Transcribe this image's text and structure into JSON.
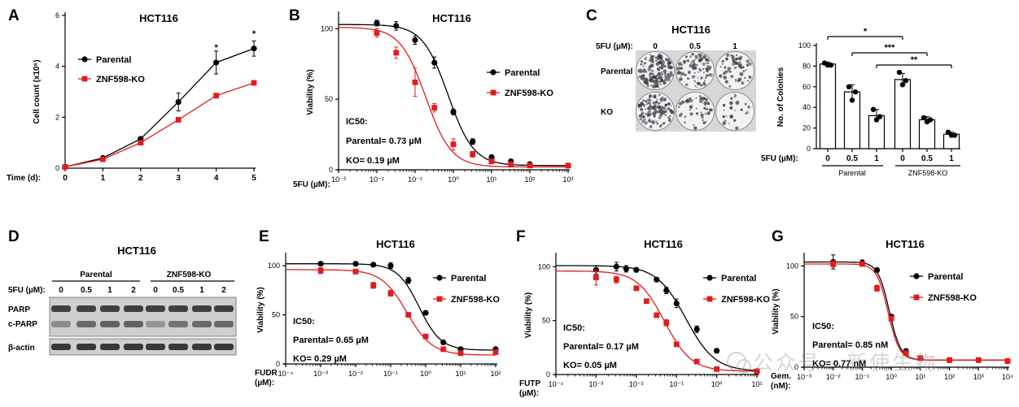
{
  "panel_letters": [
    "A",
    "B",
    "C",
    "D",
    "E",
    "F",
    "G"
  ],
  "colors": {
    "parental": "#000000",
    "ko": "#e41a1c",
    "bar_edge": "#000000"
  },
  "watermark": "公众号 · 新使生物",
  "chart_data": [
    {
      "id": "A",
      "type": "line",
      "title": "HCT116",
      "xlabel": "Time (d):",
      "ylabel": "Cell count (x10⁶)",
      "xlim": [
        0,
        5
      ],
      "ylim": [
        0,
        6
      ],
      "xticks": [
        0,
        1,
        2,
        3,
        4,
        5
      ],
      "yticks": [
        0,
        2,
        4,
        6
      ],
      "legend": "top-left",
      "annotations": [
        {
          "text": "*",
          "x": 4,
          "y": 4.75
        },
        {
          "text": "*",
          "x": 5,
          "y": 5.3
        }
      ],
      "series": [
        {
          "name": "Parental",
          "color": "#000000",
          "marker": "circle",
          "x": [
            0,
            1,
            2,
            3,
            4,
            5
          ],
          "y": [
            0.05,
            0.4,
            1.15,
            2.6,
            4.15,
            4.7
          ],
          "err": [
            0,
            0.05,
            0.08,
            0.35,
            0.45,
            0.3
          ]
        },
        {
          "name": "ZNF598-KO",
          "color": "#e41a1c",
          "marker": "square",
          "x": [
            0,
            1,
            2,
            3,
            4,
            5
          ],
          "y": [
            0.05,
            0.35,
            1.0,
            1.9,
            2.85,
            3.35
          ],
          "err": [
            0,
            0.03,
            0.05,
            0.05,
            0.05,
            0.05
          ]
        }
      ]
    },
    {
      "id": "B",
      "type": "scatter",
      "title": "HCT116",
      "xlabel": "5FU (µM):",
      "ylabel": "Viability (%)",
      "xscale": "log",
      "xlim": [
        0.001,
        1000
      ],
      "ylim": [
        0,
        110
      ],
      "xticks": [
        0.001,
        0.01,
        0.1,
        1,
        10,
        100,
        1000
      ],
      "xticklabels": [
        "10⁻³",
        "10⁻²",
        "10⁻¹",
        "10⁰",
        "10¹",
        "10²",
        "10³"
      ],
      "yticks": [
        0,
        50,
        100
      ],
      "legend": "right",
      "ic50_text": [
        "IC50:",
        "Parental= 0.73 µM",
        "KO= 0.19 µM"
      ],
      "series": [
        {
          "name": "Parental",
          "color": "#000000",
          "marker": "circle",
          "ic50": 0.73,
          "hill": 1.3,
          "top": 103,
          "bottom": 3,
          "x": [
            0.01,
            0.032,
            0.1,
            0.32,
            1,
            3.2,
            10,
            32,
            100,
            1000
          ],
          "y": [
            104,
            102,
            92,
            76,
            41,
            20,
            9,
            6,
            4,
            3
          ],
          "err": [
            2,
            3,
            3,
            4,
            2,
            2,
            1,
            1,
            1,
            1
          ]
        },
        {
          "name": "ZNF598-KO",
          "color": "#e41a1c",
          "marker": "square",
          "ic50": 0.19,
          "hill": 1.3,
          "top": 101,
          "bottom": 2,
          "x": [
            0.01,
            0.032,
            0.1,
            0.32,
            1,
            3.2,
            10,
            32,
            100,
            1000
          ],
          "y": [
            97,
            83,
            62,
            44,
            18,
            11,
            6,
            4,
            3,
            3
          ],
          "err": [
            3,
            4,
            10,
            3,
            4,
            2,
            1,
            1,
            1,
            1
          ]
        }
      ]
    },
    {
      "id": "C",
      "type": "bar",
      "title": "HCT116",
      "ylabel": "No. of Colonies",
      "ylim": [
        0,
        100
      ],
      "yticks": [
        0,
        20,
        40,
        60,
        80,
        100
      ],
      "xlabel": "5FU (µM):",
      "plate_row_labels": [
        "Parental",
        "KO"
      ],
      "plate_col_labels": [
        "0",
        "0.5",
        "1"
      ],
      "plate_header": "5FU (µM):",
      "categories": [
        "0",
        "0.5",
        "1",
        "0",
        "0.5",
        "1"
      ],
      "groups": [
        "Parental",
        "ZNF598-KO"
      ],
      "values": [
        82,
        55,
        32,
        67,
        28,
        14
      ],
      "errors": [
        2,
        7,
        6,
        6,
        3,
        2
      ],
      "dots": [
        [
          83,
          81,
          81
        ],
        [
          60,
          47,
          55
        ],
        [
          38,
          28,
          31
        ],
        [
          74,
          62,
          66
        ],
        [
          30,
          26,
          28
        ],
        [
          16,
          13,
          13
        ]
      ],
      "significance": [
        {
          "from": 0,
          "to": 3,
          "text": "*"
        },
        {
          "from": 1,
          "to": 4,
          "text": "***"
        },
        {
          "from": 2,
          "to": 5,
          "text": "**"
        }
      ]
    },
    {
      "id": "D",
      "type": "table",
      "title": "HCT116",
      "header": "5FU (µM):",
      "groups": [
        "Parental",
        "ZNF598-KO"
      ],
      "lanes": [
        "0",
        "0.5",
        "1",
        "2",
        "0",
        "0.5",
        "1",
        "2"
      ],
      "rows": [
        "PARP",
        "c-PARP",
        "β-actin"
      ],
      "band_intensity": {
        "PARP": [
          0.8,
          0.8,
          0.8,
          0.8,
          0.8,
          0.8,
          0.8,
          0.8
        ],
        "c-PARP": [
          0.35,
          0.55,
          0.6,
          0.6,
          0.3,
          0.5,
          0.55,
          0.55
        ],
        "β-actin": [
          0.85,
          0.85,
          0.85,
          0.85,
          0.85,
          0.85,
          0.85,
          0.85
        ]
      }
    },
    {
      "id": "E",
      "type": "scatter",
      "title": "HCT116",
      "xlabel": "FUDR (µM):",
      "ylabel": "Viability (%)",
      "xscale": "log",
      "xlim": [
        0.0001,
        100
      ],
      "ylim": [
        0,
        110
      ],
      "xticks": [
        0.0001,
        0.001,
        0.01,
        0.1,
        1,
        10,
        100
      ],
      "xticklabels": [
        "10⁻⁴",
        "10⁻³",
        "10⁻²",
        "10⁻¹",
        "10⁰",
        "10¹",
        "10²"
      ],
      "yticks": [
        0,
        50,
        100
      ],
      "legend": "right",
      "ic50_text": [
        "IC50:",
        "Parental= 0.65 µM",
        "KO= 0.29 µM"
      ],
      "series": [
        {
          "name": "Parental",
          "color": "#000000",
          "marker": "circle",
          "ic50": 0.65,
          "hill": 1.4,
          "top": 102,
          "bottom": 14,
          "x": [
            0.001,
            0.01,
            0.032,
            0.1,
            0.32,
            1,
            3.2,
            10,
            100
          ],
          "y": [
            102,
            102,
            101,
            100,
            85,
            52,
            22,
            15,
            15
          ],
          "err": [
            2,
            2,
            2,
            3,
            3,
            2,
            2,
            2,
            2
          ]
        },
        {
          "name": "ZNF598-KO",
          "color": "#e41a1c",
          "marker": "square",
          "ic50": 0.29,
          "hill": 1.2,
          "top": 96,
          "bottom": 9,
          "x": [
            0.001,
            0.01,
            0.032,
            0.1,
            0.32,
            1,
            3.2,
            10,
            100
          ],
          "y": [
            95,
            94,
            80,
            72,
            50,
            28,
            15,
            11,
            12
          ],
          "err": [
            3,
            2,
            3,
            3,
            2,
            2,
            2,
            1,
            2
          ]
        }
      ]
    },
    {
      "id": "F",
      "type": "scatter",
      "title": "HCT116",
      "xlabel": "FUTP (µM):",
      "ylabel": "Viability (%)",
      "xscale": "log",
      "xlim": [
        0.0001,
        10
      ],
      "ylim": [
        0,
        110
      ],
      "xticks": [
        0.0001,
        0.001,
        0.01,
        0.1,
        1,
        10
      ],
      "xticklabels": [
        "10⁻⁴",
        "10⁻³",
        "10⁻²",
        "10⁻¹",
        "10⁰",
        "10¹"
      ],
      "yticks": [
        0,
        50,
        100
      ],
      "legend": "right",
      "ic50_text": [
        "IC50:",
        "Parental= 0.17 µM",
        "KO= 0.05 µM"
      ],
      "series": [
        {
          "name": "Parental",
          "color": "#000000",
          "marker": "circle",
          "ic50": 0.17,
          "hill": 1.2,
          "top": 101,
          "bottom": 3,
          "x": [
            0.001,
            0.0032,
            0.0056,
            0.01,
            0.032,
            0.056,
            0.1,
            0.32,
            1,
            10
          ],
          "y": [
            97,
            100,
            98,
            97,
            88,
            78,
            66,
            42,
            22,
            3
          ],
          "err": [
            4,
            4,
            3,
            2,
            2,
            3,
            4,
            3,
            2,
            1
          ]
        },
        {
          "name": "ZNF598-KO",
          "color": "#e41a1c",
          "marker": "square",
          "ic50": 0.05,
          "hill": 1.3,
          "top": 96,
          "bottom": 3,
          "x": [
            0.001,
            0.0032,
            0.01,
            0.018,
            0.032,
            0.056,
            0.1,
            0.32,
            1,
            10
          ],
          "y": [
            90,
            88,
            80,
            68,
            55,
            48,
            28,
            12,
            5,
            3
          ],
          "err": [
            7,
            3,
            2,
            2,
            2,
            3,
            2,
            2,
            1,
            1
          ]
        }
      ]
    },
    {
      "id": "G",
      "type": "scatter",
      "title": "HCT116",
      "xlabel": "Gem. (nM):",
      "ylabel": "Viability (%)",
      "xscale": "log",
      "xlim": [
        0.001,
        10000
      ],
      "ylim": [
        0,
        110
      ],
      "xticks": [
        0.001,
        0.01,
        0.1,
        1,
        10,
        100,
        1000,
        10000
      ],
      "xticklabels": [
        "10⁻³",
        "10⁻²",
        "10⁻¹",
        "10⁰",
        "10¹",
        "10²",
        "10³",
        "10⁴"
      ],
      "yticks": [
        0,
        50,
        100
      ],
      "legend": "right",
      "ic50_text": [
        "IC50:",
        "Parental= 0.85 nM",
        "KO= 0.77 nM"
      ],
      "series": [
        {
          "name": "Parental",
          "color": "#000000",
          "marker": "circle",
          "ic50": 0.85,
          "hill": 2.2,
          "top": 104,
          "bottom": 7,
          "x": [
            0.01,
            0.1,
            0.32,
            1,
            3.2,
            10,
            100,
            1000,
            10000
          ],
          "y": [
            104,
            103,
            96,
            50,
            16,
            9,
            7,
            7,
            6
          ],
          "err": [
            7,
            3,
            2,
            2,
            2,
            1,
            1,
            1,
            1
          ]
        },
        {
          "name": "ZNF598-KO",
          "color": "#e41a1c",
          "marker": "square",
          "ic50": 0.77,
          "hill": 2.2,
          "top": 102,
          "bottom": 7,
          "x": [
            0.01,
            0.1,
            0.32,
            1,
            3.2,
            10,
            100,
            1000,
            10000
          ],
          "y": [
            102,
            102,
            78,
            48,
            14,
            9,
            7,
            7,
            6
          ],
          "err": [
            3,
            2,
            3,
            2,
            2,
            1,
            1,
            1,
            1
          ]
        }
      ]
    }
  ]
}
